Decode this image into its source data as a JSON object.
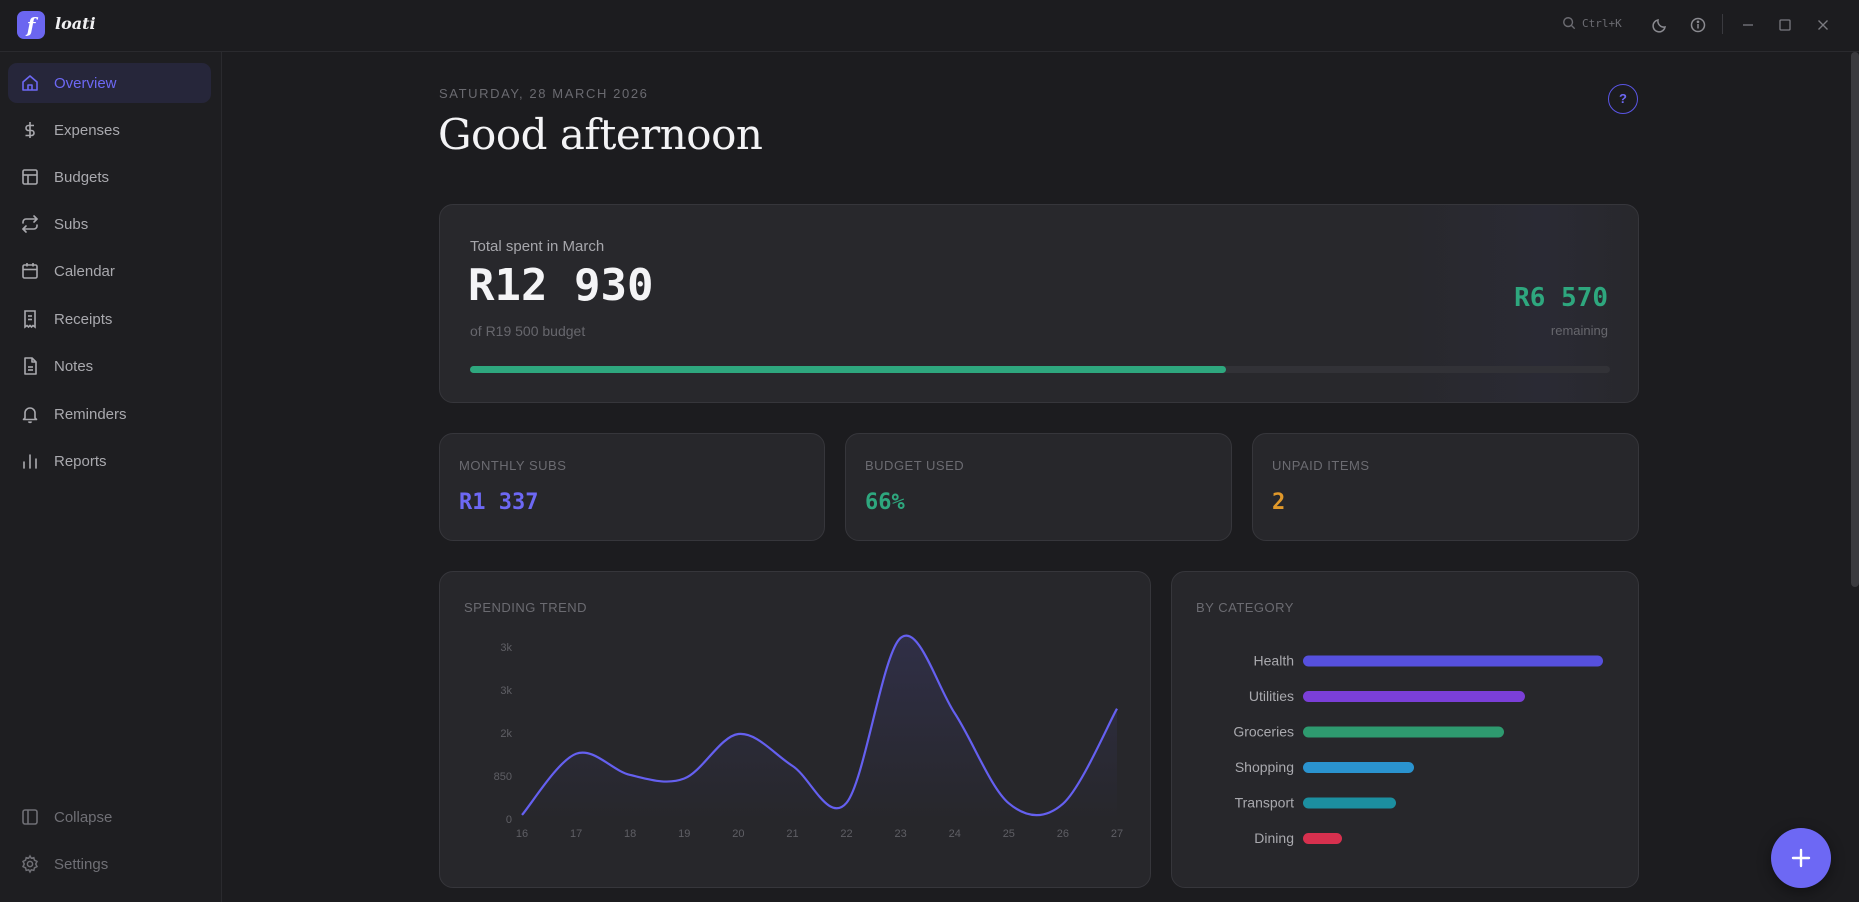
{
  "app": {
    "name": "loati",
    "logo_letter": "f"
  },
  "titlebar": {
    "search_shortcut": "Ctrl+K"
  },
  "sidebar": {
    "items": [
      {
        "label": "Overview",
        "icon": "home-icon",
        "active": true
      },
      {
        "label": "Expenses",
        "icon": "dollar-icon"
      },
      {
        "label": "Budgets",
        "icon": "table-icon"
      },
      {
        "label": "Subs",
        "icon": "repeat-icon"
      },
      {
        "label": "Calendar",
        "icon": "calendar-icon"
      },
      {
        "label": "Receipts",
        "icon": "receipt-icon"
      },
      {
        "label": "Notes",
        "icon": "file-icon"
      },
      {
        "label": "Reminders",
        "icon": "bell-icon"
      },
      {
        "label": "Reports",
        "icon": "bar-chart-icon"
      }
    ],
    "collapse_label": "Collapse",
    "settings_label": "Settings"
  },
  "header": {
    "date": "SATURDAY, 28 MARCH 2026",
    "greeting": "Good afternoon",
    "help_label": "?"
  },
  "summary": {
    "label": "Total spent in March",
    "amount": "R12 930",
    "budget_text": "of R19 500 budget",
    "remaining": "R6 570",
    "remaining_label": "remaining",
    "progress_fraction": 0.663
  },
  "stats": [
    {
      "label": "MONTHLY SUBS",
      "value": "R1 337",
      "color": "#6d68f4"
    },
    {
      "label": "BUDGET USED",
      "value": "66%",
      "color": "#2ea77e"
    },
    {
      "label": "UNPAID ITEMS",
      "value": "2",
      "color": "#e0982a"
    }
  ],
  "trend": {
    "title": "SPENDING TREND",
    "y_tick_labels": [
      "3k",
      "3k",
      "2k",
      "850",
      "0"
    ],
    "color": "#6560f0"
  },
  "category": {
    "title": "BY CATEGORY"
  },
  "chart_data": [
    {
      "type": "line",
      "title": "SPENDING TREND",
      "x": [
        "16",
        "17",
        "18",
        "19",
        "20",
        "21",
        "22",
        "23",
        "24",
        "25",
        "26",
        "27"
      ],
      "values": [
        80,
        1290,
        870,
        800,
        1680,
        1050,
        320,
        3580,
        2090,
        310,
        300,
        2180
      ],
      "y_ticks": [
        0,
        850,
        1700,
        2550,
        3400
      ],
      "ylim": [
        0,
        3400
      ]
    },
    {
      "type": "bar",
      "orientation": "horizontal",
      "title": "BY CATEGORY",
      "categories": [
        "Health",
        "Utilities",
        "Groceries",
        "Shopping",
        "Transport",
        "Dining"
      ],
      "values": [
        100,
        74,
        67,
        37,
        31,
        13
      ],
      "colors": [
        "#5650de",
        "#7b3fd8",
        "#2e9a6f",
        "#2a93cf",
        "#1c8fa0",
        "#d7304e"
      ]
    }
  ]
}
